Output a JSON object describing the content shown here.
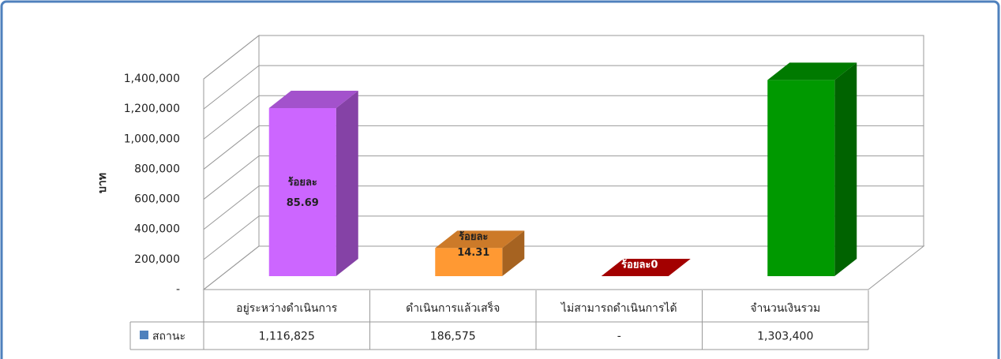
{
  "chart_data": {
    "type": "bar3d",
    "y_axis_label": "บาท",
    "categories": [
      "อยู่ระหว่างดำเนินการ",
      "ดำเนินการแล้วเสร็จ",
      "ไม่สามารถดำเนินการได้",
      "จำนวนเงินรวม"
    ],
    "series": [
      {
        "name": "สถานะ",
        "color": "#4f81bd",
        "values": [
          1116825,
          186575,
          0,
          1303400
        ],
        "value_labels": [
          "1,116,825",
          "186,575",
          "-",
          "1,303,400"
        ],
        "bar_colors": [
          "#cc66ff",
          "#ff9933",
          "#cc0000",
          "#009900"
        ]
      }
    ],
    "data_labels": [
      [
        "ร้อยละ",
        "85.69"
      ],
      [
        "ร้อยละ",
        "14.31"
      ],
      [
        "ร้อยละ0"
      ],
      null
    ],
    "ylim": [
      0,
      1400000
    ],
    "yticks": [
      {
        "value": 0,
        "label": "-"
      },
      {
        "value": 200000,
        "label": "200,000"
      },
      {
        "value": 400000,
        "label": "400,000"
      },
      {
        "value": 600000,
        "label": "600,000"
      },
      {
        "value": 800000,
        "label": "800,000"
      },
      {
        "value": 1000000,
        "label": "1,000,000"
      },
      {
        "value": 1200000,
        "label": "1,200,000"
      },
      {
        "value": 1400000,
        "label": "1,400,000"
      }
    ],
    "grid": true,
    "legend": "table"
  }
}
